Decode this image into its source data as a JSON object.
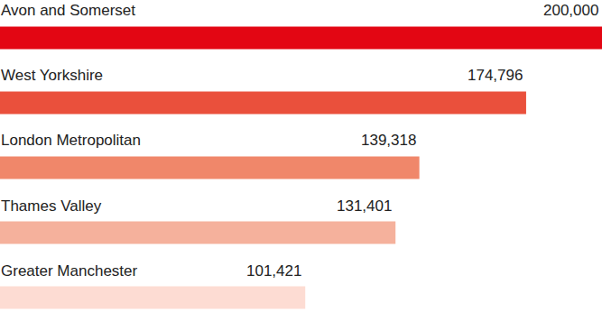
{
  "chart_data": {
    "type": "bar",
    "orientation": "horizontal",
    "categories": [
      "Avon and Somerset",
      "West Yorkshire",
      "London Metropolitan",
      "Thames Valley",
      "Greater Manchester"
    ],
    "values": [
      200000,
      174796,
      139318,
      131401,
      101421
    ],
    "value_labels": [
      "200,000",
      "174,796",
      "139,318",
      "131,401",
      "101,421"
    ],
    "colors": [
      "#e30613",
      "#ea503c",
      "#f0876a",
      "#f5b19c",
      "#fddcd3"
    ],
    "xlim": [
      0,
      200000
    ],
    "data_labels": true,
    "tick_labels": false,
    "grid": false
  }
}
